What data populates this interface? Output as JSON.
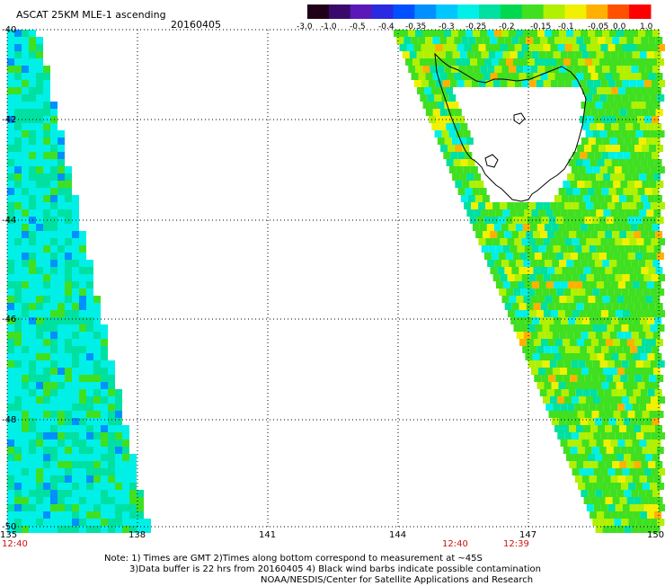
{
  "header": {
    "title": "ASCAT 25KM MLE-1 ascending",
    "date": "20160405"
  },
  "colorbar": {
    "labels": [
      "-3.0",
      "-1.0",
      "-0.5",
      "-0.4",
      "-0.35",
      "-0.3",
      "-0.25",
      "-0.2",
      "-0.15",
      "-0.1",
      "-0.05",
      "0.0",
      "1.0"
    ],
    "colors": [
      "#200018",
      "#3a0a6a",
      "#5a18b8",
      "#2a2ae0",
      "#0050ff",
      "#0090ff",
      "#00c8ff",
      "#00f0e8",
      "#00e0a0",
      "#00d850",
      "#40e020",
      "#b0f000",
      "#f0f000",
      "#ffb000",
      "#ff5000",
      "#ff0000"
    ]
  },
  "axes": {
    "lon_labels": [
      "135",
      "138",
      "141",
      "144",
      "147",
      "150"
    ],
    "lat_labels": [
      "-40",
      "-42",
      "-44",
      "-46",
      "-48",
      "-50"
    ],
    "time_labels": [
      "12:40",
      "12:40",
      "12:39"
    ]
  },
  "notes": {
    "line1": "Note: 1) Times are GMT 2)Times along bottom correspond to measurement at ~45S",
    "line2": "3)Data buffer is 22 hrs from 20160405 4) Black wind barbs indicate possible contamination",
    "line3": "NOAA/NESDIS/Center for Satellite Applications and Research"
  }
}
